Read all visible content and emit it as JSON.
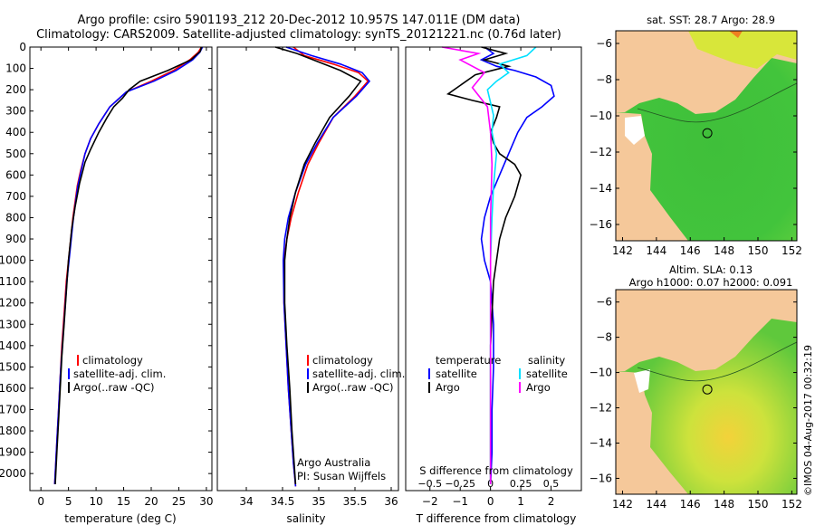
{
  "header": {
    "line1": "Argo profile: csiro 5901193_212 20-Dec-2012 10.957S 147.011E (DM data)",
    "line2": "Climatology: CARS2009. Satellite-adjusted climatology: synTS_20121221.nc (0.76d later)"
  },
  "credit": "©IMOS 04-Aug-2017 00:32:19",
  "colors": {
    "clim": "#ff0000",
    "sat": "#0000ff",
    "argo": "#000000",
    "sal_sat": "#00e0ff",
    "sal_argo": "#ff00ff",
    "land": "#f5c89a"
  },
  "chart_data": [
    {
      "id": "temperature",
      "type": "line",
      "xlabel": "temperature (deg C)",
      "ylabel": "",
      "xlim": [
        -2,
        31
      ],
      "ylim": [
        2080,
        0
      ],
      "xticks": [
        0,
        5,
        10,
        15,
        20,
        25,
        30
      ],
      "yticks": [
        0,
        100,
        200,
        300,
        400,
        500,
        600,
        700,
        800,
        900,
        1000,
        1100,
        1200,
        1300,
        1400,
        1500,
        1600,
        1700,
        1800,
        1900,
        2000
      ],
      "legend": [
        "climatology",
        "satellite-adj. clim.",
        "Argo(..raw -QC)"
      ],
      "series": [
        {
          "name": "climatology",
          "color": "#ff0000",
          "x": [
            29.1,
            28.5,
            27,
            24,
            20,
            15.5,
            12.5,
            10.5,
            9,
            8,
            7.2,
            6.6,
            5.8,
            5.2,
            4.6,
            4.2,
            3.8,
            3.5,
            3.2,
            2.9,
            2.7,
            2.6,
            2.5
          ],
          "y": [
            0,
            25,
            60,
            110,
            160,
            210,
            280,
            360,
            430,
            500,
            580,
            650,
            800,
            950,
            1100,
            1250,
            1400,
            1550,
            1700,
            1850,
            1950,
            2000,
            2050
          ]
        },
        {
          "name": "satellite-adj. clim.",
          "color": "#0000ff",
          "x": [
            29.3,
            28.8,
            27.5,
            24.5,
            20.5,
            15.5,
            12.5,
            10.5,
            9,
            8,
            7.3,
            6.7,
            5.9,
            5.3,
            4.7,
            4.3,
            3.9,
            3.5,
            3.2,
            2.9,
            2.7,
            2.6,
            2.5
          ],
          "y": [
            0,
            25,
            60,
            110,
            160,
            210,
            280,
            360,
            430,
            500,
            580,
            650,
            800,
            950,
            1100,
            1250,
            1400,
            1550,
            1700,
            1850,
            1950,
            2000,
            2050
          ]
        },
        {
          "name": "Argo(..raw -QC)",
          "color": "#000000",
          "x": [
            29.1,
            28.9,
            27.2,
            23,
            18,
            16,
            14.8,
            13.2,
            12,
            10.5,
            9,
            8,
            7,
            6.2,
            5.6,
            5,
            4.6,
            4.2,
            3.8,
            3.5,
            3.2,
            2.9,
            2.7,
            2.6
          ],
          "y": [
            0,
            20,
            60,
            110,
            160,
            200,
            240,
            280,
            330,
            400,
            480,
            540,
            640,
            750,
            850,
            1000,
            1150,
            1300,
            1450,
            1600,
            1750,
            1900,
            2000,
            2050
          ]
        }
      ],
      "annotations": []
    },
    {
      "id": "salinity",
      "type": "line",
      "xlabel": "salinity",
      "ylabel": "",
      "xlim": [
        33.6,
        36.1
      ],
      "ylim": [
        2080,
        0
      ],
      "xticks": [
        34,
        34.5,
        35,
        35.5,
        36
      ],
      "xtick_labels": [
        "34",
        "34.5",
        "35",
        "35.5",
        "36"
      ],
      "legend": [
        "climatology",
        "satellite-adj. clim.",
        "Argo(..raw -QC)"
      ],
      "annotations": [
        "Argo Australia",
        "PI: Susan Wijffels"
      ],
      "series": [
        {
          "name": "climatology",
          "color": "#ff0000",
          "x": [
            34.65,
            34.8,
            35.2,
            35.55,
            35.68,
            35.5,
            35.2,
            35.0,
            34.85,
            34.72,
            34.62,
            34.56,
            34.52,
            34.52,
            34.55,
            34.58,
            34.62,
            34.65,
            34.67,
            34.68
          ],
          "y": [
            0,
            40,
            80,
            120,
            160,
            230,
            330,
            450,
            550,
            680,
            800,
            900,
            1000,
            1200,
            1400,
            1600,
            1800,
            1950,
            2020,
            2060
          ]
        },
        {
          "name": "satellite-adj. clim.",
          "color": "#0000ff",
          "x": [
            34.55,
            34.9,
            35.3,
            35.6,
            35.7,
            35.52,
            35.2,
            34.98,
            34.82,
            34.68,
            34.58,
            34.53,
            34.51,
            34.52,
            34.55,
            34.58,
            34.62,
            34.65,
            34.67,
            34.68
          ],
          "y": [
            0,
            40,
            80,
            120,
            160,
            230,
            330,
            450,
            550,
            680,
            800,
            900,
            1000,
            1200,
            1400,
            1600,
            1800,
            1950,
            2020,
            2060
          ]
        },
        {
          "name": "Argo(..raw -QC)",
          "color": "#000000",
          "x": [
            34.4,
            34.7,
            35.0,
            35.3,
            35.58,
            35.42,
            35.15,
            34.95,
            34.8,
            34.68,
            34.6,
            34.56,
            34.53,
            34.53,
            34.56,
            34.6,
            34.63,
            34.66,
            34.68
          ],
          "y": [
            0,
            30,
            70,
            110,
            160,
            230,
            330,
            450,
            550,
            680,
            800,
            900,
            1000,
            1200,
            1400,
            1600,
            1800,
            1950,
            2050
          ]
        }
      ]
    },
    {
      "id": "difference",
      "type": "line",
      "xlabel": "T difference from climatology",
      "xlabel_top": "S difference from climatology",
      "xlim": [
        -2.8,
        3.0
      ],
      "ylim": [
        2080,
        0
      ],
      "xticks": [
        -2,
        -1,
        0,
        1,
        2
      ],
      "xticks_s_labels": [
        "-0.5",
        "-0.25",
        "0",
        "0.25",
        "0.5"
      ],
      "legend_titles": [
        "temperature",
        "salinity"
      ],
      "legend": [
        "satellite",
        "Argo",
        "satellite",
        "Argo"
      ],
      "series": [
        {
          "name": "temperature satellite",
          "color": "#0000ff",
          "x": [
            -0.2,
            0.1,
            -0.3,
            0.2,
            0.8,
            1.5,
            2.0,
            2.1,
            1.7,
            1.2,
            0.9,
            0.6,
            0.3,
            0.0,
            -0.2,
            -0.3,
            -0.2,
            0.0,
            0.1,
            0.1,
            0.05,
            0.05,
            0.0
          ],
          "y": [
            0,
            30,
            60,
            90,
            110,
            140,
            180,
            230,
            280,
            330,
            400,
            500,
            600,
            700,
            800,
            900,
            1000,
            1100,
            1300,
            1500,
            1700,
            1900,
            2050
          ]
        },
        {
          "name": "temperature Argo",
          "color": "#000000",
          "x": [
            -0.3,
            0.5,
            -0.2,
            0.6,
            -0.5,
            -1.4,
            -0.6,
            0.3,
            0.2,
            0.0,
            0.1,
            0.3,
            0.8,
            1.0,
            0.8,
            0.5,
            0.3,
            0.1,
            0.0,
            0.0,
            0.0
          ],
          "y": [
            0,
            30,
            60,
            90,
            130,
            220,
            250,
            280,
            330,
            400,
            450,
            500,
            550,
            600,
            700,
            800,
            900,
            1100,
            1400,
            1700,
            2050
          ]
        },
        {
          "name": "salinity satellite",
          "color": "#00e0ff",
          "x": [
            1.5,
            1.2,
            0.3,
            0.6,
            0.2,
            -0.1,
            0.0,
            0.1,
            0.05,
            0.2,
            0.1,
            0.05,
            0.0,
            0.0,
            0.0
          ],
          "y": [
            0,
            40,
            80,
            120,
            160,
            200,
            260,
            320,
            400,
            500,
            650,
            800,
            1000,
            1500,
            2050
          ]
        },
        {
          "name": "salinity Argo",
          "color": "#ff00ff",
          "x": [
            -1.6,
            -0.4,
            -1.0,
            -0.2,
            -0.6,
            -0.1,
            0.0,
            0.05,
            0.0,
            0.0,
            0.0
          ],
          "y": [
            0,
            30,
            60,
            120,
            190,
            280,
            400,
            550,
            800,
            1500,
            2050
          ]
        }
      ]
    },
    {
      "id": "sst-map",
      "type": "heatmap",
      "title": "sat. SST: 28.7 Argo: 28.9",
      "xlim": [
        141.6,
        152.3
      ],
      "ylim": [
        -16.9,
        -5.3
      ],
      "xticks": [
        142,
        144,
        146,
        148,
        150,
        152
      ],
      "yticks": [
        -6,
        -8,
        -10,
        -12,
        -14,
        -16
      ],
      "marker": {
        "x": 147.011,
        "y": -10.957
      }
    },
    {
      "id": "sla-map",
      "type": "heatmap",
      "title": "Altim. SLA: 0.13",
      "subtitle": "Argo h1000: 0.07 h2000: 0.091",
      "xlim": [
        141.6,
        152.3
      ],
      "ylim": [
        -16.9,
        -5.3
      ],
      "xticks": [
        142,
        144,
        146,
        148,
        150,
        152
      ],
      "yticks": [
        -6,
        -8,
        -10,
        -12,
        -14,
        -16
      ],
      "marker": {
        "x": 147.011,
        "y": -10.957
      }
    }
  ]
}
